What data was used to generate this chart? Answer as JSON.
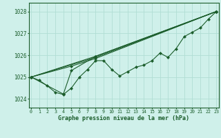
{
  "title": "Graphe pression niveau de la mer (hPa)",
  "background_color": "#cff0ea",
  "grid_color": "#b0ddd4",
  "line_color": "#1a5c2a",
  "xlim": [
    -0.3,
    23.3
  ],
  "ylim": [
    1023.6,
    1028.4
  ],
  "yticks": [
    1024,
    1025,
    1026,
    1027,
    1028
  ],
  "xticks": [
    0,
    1,
    2,
    3,
    4,
    5,
    6,
    7,
    8,
    9,
    10,
    11,
    12,
    13,
    14,
    15,
    16,
    17,
    18,
    19,
    20,
    21,
    22,
    23
  ],
  "series": [
    {
      "x": [
        0,
        1,
        2,
        3,
        4,
        5,
        6,
        7,
        8,
        9,
        10,
        11,
        12,
        13,
        14,
        15,
        16,
        17,
        18,
        19,
        20,
        21,
        22,
        23
      ],
      "y": [
        1025.0,
        1024.85,
        1024.6,
        1024.3,
        1024.2,
        1024.5,
        1025.0,
        1025.35,
        1025.75,
        1025.75,
        1025.35,
        1025.05,
        1025.25,
        1025.45,
        1025.55,
        1025.75,
        1026.1,
        1025.9,
        1026.3,
        1026.85,
        1027.05,
        1027.25,
        1027.65,
        1028.0
      ],
      "marker": true
    },
    {
      "x": [
        0,
        8,
        23
      ],
      "y": [
        1025.0,
        1025.9,
        1028.0
      ],
      "marker": true
    },
    {
      "x": [
        0,
        8,
        23
      ],
      "y": [
        1025.0,
        1025.95,
        1028.0
      ],
      "marker": true
    },
    {
      "x": [
        0,
        5,
        8,
        23
      ],
      "y": [
        1025.0,
        1025.5,
        1025.85,
        1028.0
      ],
      "marker": true
    },
    {
      "x": [
        0,
        4,
        5,
        8,
        23
      ],
      "y": [
        1025.0,
        1024.22,
        1025.3,
        1025.95,
        1028.0
      ],
      "marker": true
    }
  ]
}
